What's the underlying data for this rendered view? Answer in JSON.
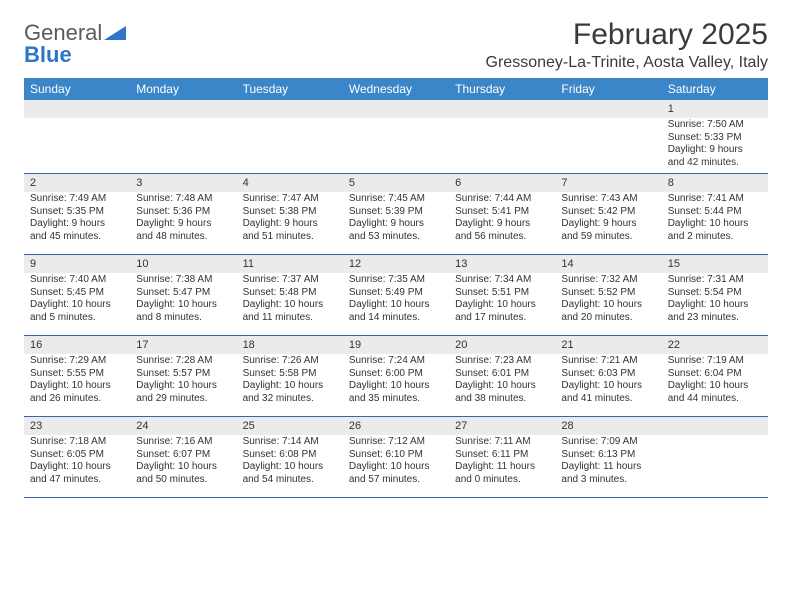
{
  "logo": {
    "word1": "General",
    "word2": "Blue",
    "shape_color": "#2e75c8"
  },
  "title": "February 2025",
  "location": "Gressoney-La-Trinite, Aosta Valley, Italy",
  "header_bg": "#3a86c8",
  "header_fg": "#ffffff",
  "divider_color": "#2e6aaa",
  "daynum_bg": "#ebebeb",
  "text_color": "#333333",
  "day_names": [
    "Sunday",
    "Monday",
    "Tuesday",
    "Wednesday",
    "Thursday",
    "Friday",
    "Saturday"
  ],
  "weeks": [
    [
      {
        "n": "",
        "sunrise": "",
        "sunset": "",
        "daylight": ""
      },
      {
        "n": "",
        "sunrise": "",
        "sunset": "",
        "daylight": ""
      },
      {
        "n": "",
        "sunrise": "",
        "sunset": "",
        "daylight": ""
      },
      {
        "n": "",
        "sunrise": "",
        "sunset": "",
        "daylight": ""
      },
      {
        "n": "",
        "sunrise": "",
        "sunset": "",
        "daylight": ""
      },
      {
        "n": "",
        "sunrise": "",
        "sunset": "",
        "daylight": ""
      },
      {
        "n": "1",
        "sunrise": "Sunrise: 7:50 AM",
        "sunset": "Sunset: 5:33 PM",
        "daylight": "Daylight: 9 hours and 42 minutes."
      }
    ],
    [
      {
        "n": "2",
        "sunrise": "Sunrise: 7:49 AM",
        "sunset": "Sunset: 5:35 PM",
        "daylight": "Daylight: 9 hours and 45 minutes."
      },
      {
        "n": "3",
        "sunrise": "Sunrise: 7:48 AM",
        "sunset": "Sunset: 5:36 PM",
        "daylight": "Daylight: 9 hours and 48 minutes."
      },
      {
        "n": "4",
        "sunrise": "Sunrise: 7:47 AM",
        "sunset": "Sunset: 5:38 PM",
        "daylight": "Daylight: 9 hours and 51 minutes."
      },
      {
        "n": "5",
        "sunrise": "Sunrise: 7:45 AM",
        "sunset": "Sunset: 5:39 PM",
        "daylight": "Daylight: 9 hours and 53 minutes."
      },
      {
        "n": "6",
        "sunrise": "Sunrise: 7:44 AM",
        "sunset": "Sunset: 5:41 PM",
        "daylight": "Daylight: 9 hours and 56 minutes."
      },
      {
        "n": "7",
        "sunrise": "Sunrise: 7:43 AM",
        "sunset": "Sunset: 5:42 PM",
        "daylight": "Daylight: 9 hours and 59 minutes."
      },
      {
        "n": "8",
        "sunrise": "Sunrise: 7:41 AM",
        "sunset": "Sunset: 5:44 PM",
        "daylight": "Daylight: 10 hours and 2 minutes."
      }
    ],
    [
      {
        "n": "9",
        "sunrise": "Sunrise: 7:40 AM",
        "sunset": "Sunset: 5:45 PM",
        "daylight": "Daylight: 10 hours and 5 minutes."
      },
      {
        "n": "10",
        "sunrise": "Sunrise: 7:38 AM",
        "sunset": "Sunset: 5:47 PM",
        "daylight": "Daylight: 10 hours and 8 minutes."
      },
      {
        "n": "11",
        "sunrise": "Sunrise: 7:37 AM",
        "sunset": "Sunset: 5:48 PM",
        "daylight": "Daylight: 10 hours and 11 minutes."
      },
      {
        "n": "12",
        "sunrise": "Sunrise: 7:35 AM",
        "sunset": "Sunset: 5:49 PM",
        "daylight": "Daylight: 10 hours and 14 minutes."
      },
      {
        "n": "13",
        "sunrise": "Sunrise: 7:34 AM",
        "sunset": "Sunset: 5:51 PM",
        "daylight": "Daylight: 10 hours and 17 minutes."
      },
      {
        "n": "14",
        "sunrise": "Sunrise: 7:32 AM",
        "sunset": "Sunset: 5:52 PM",
        "daylight": "Daylight: 10 hours and 20 minutes."
      },
      {
        "n": "15",
        "sunrise": "Sunrise: 7:31 AM",
        "sunset": "Sunset: 5:54 PM",
        "daylight": "Daylight: 10 hours and 23 minutes."
      }
    ],
    [
      {
        "n": "16",
        "sunrise": "Sunrise: 7:29 AM",
        "sunset": "Sunset: 5:55 PM",
        "daylight": "Daylight: 10 hours and 26 minutes."
      },
      {
        "n": "17",
        "sunrise": "Sunrise: 7:28 AM",
        "sunset": "Sunset: 5:57 PM",
        "daylight": "Daylight: 10 hours and 29 minutes."
      },
      {
        "n": "18",
        "sunrise": "Sunrise: 7:26 AM",
        "sunset": "Sunset: 5:58 PM",
        "daylight": "Daylight: 10 hours and 32 minutes."
      },
      {
        "n": "19",
        "sunrise": "Sunrise: 7:24 AM",
        "sunset": "Sunset: 6:00 PM",
        "daylight": "Daylight: 10 hours and 35 minutes."
      },
      {
        "n": "20",
        "sunrise": "Sunrise: 7:23 AM",
        "sunset": "Sunset: 6:01 PM",
        "daylight": "Daylight: 10 hours and 38 minutes."
      },
      {
        "n": "21",
        "sunrise": "Sunrise: 7:21 AM",
        "sunset": "Sunset: 6:03 PM",
        "daylight": "Daylight: 10 hours and 41 minutes."
      },
      {
        "n": "22",
        "sunrise": "Sunrise: 7:19 AM",
        "sunset": "Sunset: 6:04 PM",
        "daylight": "Daylight: 10 hours and 44 minutes."
      }
    ],
    [
      {
        "n": "23",
        "sunrise": "Sunrise: 7:18 AM",
        "sunset": "Sunset: 6:05 PM",
        "daylight": "Daylight: 10 hours and 47 minutes."
      },
      {
        "n": "24",
        "sunrise": "Sunrise: 7:16 AM",
        "sunset": "Sunset: 6:07 PM",
        "daylight": "Daylight: 10 hours and 50 minutes."
      },
      {
        "n": "25",
        "sunrise": "Sunrise: 7:14 AM",
        "sunset": "Sunset: 6:08 PM",
        "daylight": "Daylight: 10 hours and 54 minutes."
      },
      {
        "n": "26",
        "sunrise": "Sunrise: 7:12 AM",
        "sunset": "Sunset: 6:10 PM",
        "daylight": "Daylight: 10 hours and 57 minutes."
      },
      {
        "n": "27",
        "sunrise": "Sunrise: 7:11 AM",
        "sunset": "Sunset: 6:11 PM",
        "daylight": "Daylight: 11 hours and 0 minutes."
      },
      {
        "n": "28",
        "sunrise": "Sunrise: 7:09 AM",
        "sunset": "Sunset: 6:13 PM",
        "daylight": "Daylight: 11 hours and 3 minutes."
      },
      {
        "n": "",
        "sunrise": "",
        "sunset": "",
        "daylight": ""
      }
    ]
  ]
}
